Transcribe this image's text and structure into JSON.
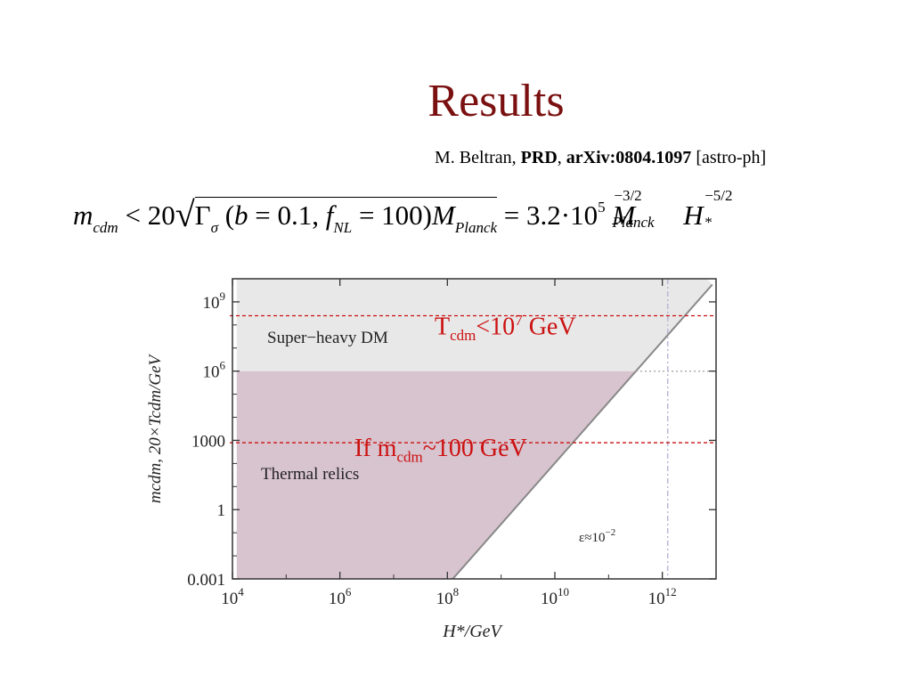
{
  "slide": {
    "title": "Results",
    "citation": {
      "author": "M. Beltran, ",
      "journal": "PRD",
      "sep": ", ",
      "arxiv": "arXiv:0804.1097",
      "category": " [astro-ph]"
    },
    "equation": {
      "lhs": "m",
      "lhs_sub": "cdm",
      "rel": " < 20",
      "gamma": "Γ",
      "gamma_sub": "σ",
      "args_open": " (",
      "b": "b",
      "b_val": " = 0.1, ",
      "f": "f",
      "f_sub": "NL",
      "f_val": " = 100)",
      "M": "M",
      "M_sub": "Planck",
      "equals": " = 3.2·10",
      "exp5": "5",
      "M2": "M",
      "M2_sup": "−3/2",
      "M2_sub": "Planck",
      "H": "H",
      "H_sup": "−5/2",
      "H_sub": "*"
    },
    "annotations": {
      "tcdm_prefix": "T",
      "tcdm_sub": "cdm",
      "tcdm_mid": "<10",
      "tcdm_sup": "7",
      "tcdm_suffix": " GeV",
      "if_prefix": "If m",
      "if_sub": "cdm",
      "if_suffix": "~100 GeV"
    },
    "colors": {
      "title": "#7a1010",
      "annotation_red": "#cc1111",
      "super_heavy_fill": "#e8e8e8",
      "thermal_fill": "#d8c4cf",
      "boundary_line": "#888888"
    }
  },
  "chart_data": {
    "type": "area",
    "xlabel": "H*/GeV",
    "ylabel": "mcdm, 20×Tcdm/GeV",
    "xscale": "log",
    "yscale": "log",
    "xlim_log10": [
      4,
      13
    ],
    "ylim_log10": [
      -3,
      10
    ],
    "x_ticks": [
      {
        "exp": 4,
        "label": "10",
        "sup": "4"
      },
      {
        "exp": 6,
        "label": "10",
        "sup": "6"
      },
      {
        "exp": 8,
        "label": "10",
        "sup": "8"
      },
      {
        "exp": 10,
        "label": "10",
        "sup": "10"
      },
      {
        "exp": 12,
        "label": "10",
        "sup": "12"
      }
    ],
    "y_ticks": [
      {
        "exp": 9,
        "label": "10",
        "sup": "9"
      },
      {
        "exp": 6,
        "label": "10",
        "sup": "6"
      },
      {
        "exp": 3,
        "label": "1000",
        "sup": ""
      },
      {
        "exp": 0,
        "label": "1",
        "sup": ""
      },
      {
        "exp": -3,
        "label": "0.001",
        "sup": ""
      }
    ],
    "boundary_line_log10": [
      [
        8.1,
        -3
      ],
      [
        12.93,
        9.75
      ]
    ],
    "thermal_top_log10": 6,
    "super_heavy_label": "Super−heavy DM",
    "thermal_label": "Thermal relics",
    "epsilon_label": "ε≈10",
    "epsilon_sup": "−2",
    "vline_log10_x": 12.1,
    "red_dashed_y_log10": [
      8.4,
      2.9
    ],
    "gray_dotted_y_log10": 6
  }
}
